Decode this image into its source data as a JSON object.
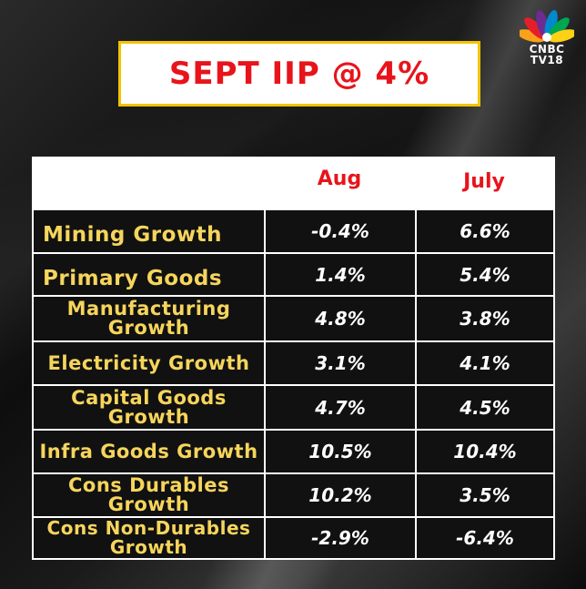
{
  "title": "SEPT IIP @ 4%",
  "logo": {
    "line1": "CNBC",
    "line2": "TV18"
  },
  "table": {
    "headers": {
      "aug": "Aug",
      "july": "July"
    },
    "rows": [
      {
        "label": "Mining Growth",
        "aug": "-0.4%",
        "july": "6.6%"
      },
      {
        "label": "Primary Goods",
        "aug": "1.4%",
        "july": "5.4%"
      },
      {
        "label": "Manufacturing Growth",
        "aug": "4.8%",
        "july": "3.8%"
      },
      {
        "label": "Electricity Growth",
        "aug": "3.1%",
        "july": "4.1%"
      },
      {
        "label": "Capital Goods Growth",
        "aug": "4.7%",
        "july": "4.5%"
      },
      {
        "label": "Infra Goods Growth",
        "aug": "10.5%",
        "july": "10.4%"
      },
      {
        "label": "Cons Durables Growth",
        "aug": "10.2%",
        "july": "3.5%"
      },
      {
        "label": "Cons Non-Durables Growth",
        "aug": "-2.9%",
        "july": "-6.4%"
      }
    ]
  },
  "colors": {
    "title_red": "#e8141b",
    "label_yellow": "#f6d55c",
    "border_yellow": "#f2c400"
  }
}
